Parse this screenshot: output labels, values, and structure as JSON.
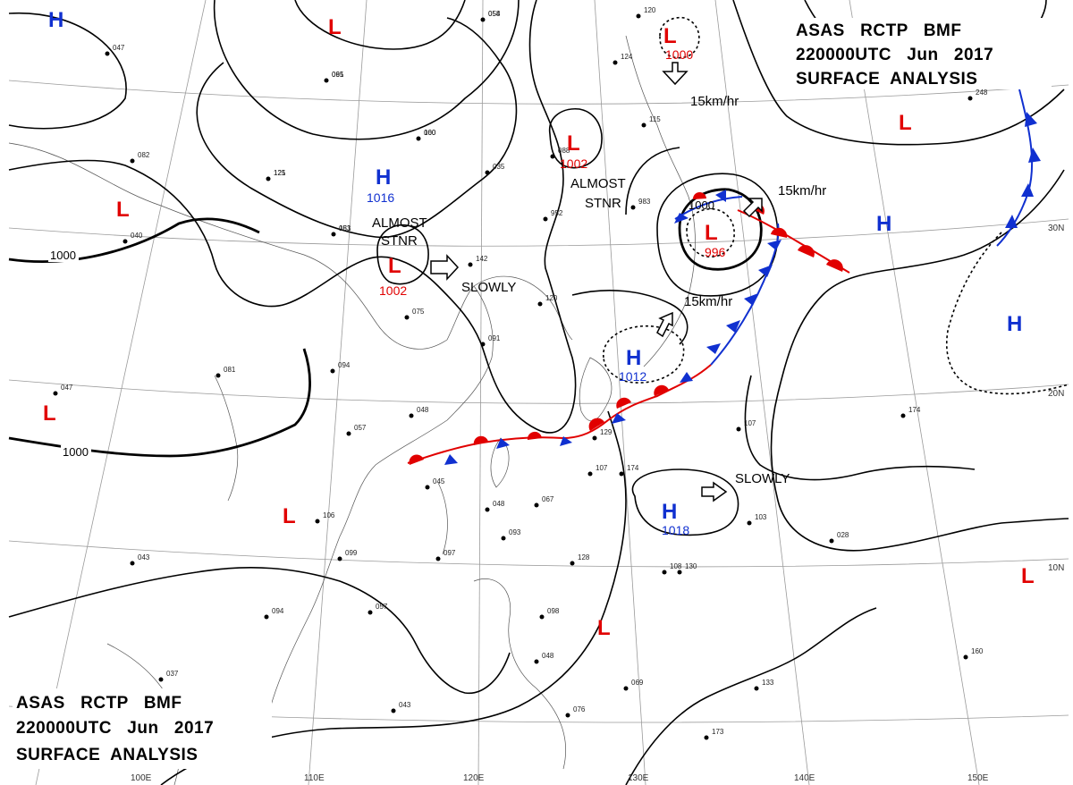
{
  "header": {
    "line1": "ASAS   RCTP   BMF",
    "line2": "220000UTC   Jun   2017",
    "line3": "SURFACE  ANALYSIS"
  },
  "footer": {
    "line1": "ASAS   RCTP   BMF",
    "line2": "220000UTC   Jun   2017",
    "line3": "SURFACE  ANALYSIS"
  },
  "pressure_centers": [
    {
      "type": "L",
      "value": "1000"
    },
    {
      "type": "L",
      "value": "1002"
    },
    {
      "type": "L",
      "value": "996"
    },
    {
      "type": "L",
      "value": "1002"
    },
    {
      "type": "H",
      "value": "1016"
    },
    {
      "type": "H",
      "value": "1012"
    },
    {
      "type": "H",
      "value": "1018"
    },
    {
      "type": "L",
      "value": ""
    },
    {
      "type": "L",
      "value": ""
    },
    {
      "type": "L",
      "value": ""
    },
    {
      "type": "L",
      "value": ""
    },
    {
      "type": "L",
      "value": ""
    },
    {
      "type": "L",
      "value": ""
    },
    {
      "type": "L",
      "value": ""
    },
    {
      "type": "H",
      "value": ""
    },
    {
      "type": "H",
      "value": ""
    },
    {
      "type": "H",
      "value": ""
    }
  ],
  "motion_labels": {
    "a": "15km/hr",
    "b": "15km/hr",
    "c": "15km/hr",
    "d": "ALMOST",
    "e": "STNR",
    "f": "ALMOST",
    "g": "STNR",
    "h": "SLOWLY",
    "i": "SLOWLY"
  },
  "isobar_labels": {
    "a": "1000",
    "b": "1000",
    "c": "1000"
  },
  "grid_labels": {
    "lon_100": "100E",
    "lon_110": "110E",
    "lon_120": "120E",
    "lon_130": "130E",
    "lon_140": "140E",
    "lon_150": "150E",
    "lat_30": "30N",
    "lat_20": "20N",
    "lat_10": "10N"
  },
  "stations": [
    "054",
    "061",
    "060",
    "121",
    "183",
    "142",
    "120",
    "091",
    "075",
    "094",
    "081",
    "048",
    "057",
    "045",
    "048",
    "067",
    "093",
    "097",
    "099",
    "106",
    "094",
    "057",
    "043",
    "076",
    "069",
    "048",
    "098",
    "128",
    "174",
    "107",
    "129",
    "108",
    "130",
    "107",
    "103",
    "133",
    "173",
    "160",
    "174",
    "248",
    "120",
    "124",
    "115",
    "088",
    "983",
    "952",
    "035",
    "047",
    "040",
    "082",
    "047",
    "043",
    "037",
    "028",
    "058",
    "095",
    "100",
    "125",
    "051"
  ]
}
